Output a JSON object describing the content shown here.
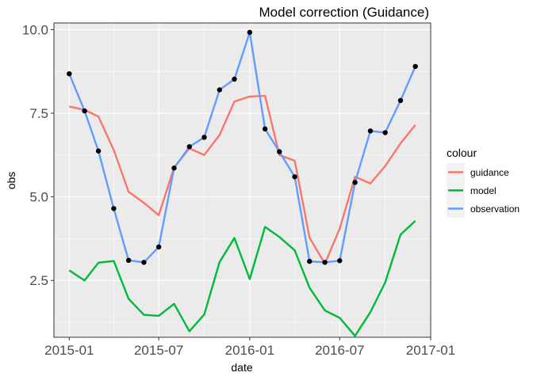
{
  "chart_data": {
    "type": "line",
    "title": "Model correction (Guidance)",
    "xlabel": "date",
    "ylabel": "obs",
    "grid": true,
    "legend_position": "right",
    "legend_title": "colour",
    "xlim": [
      "2014-12-01",
      "2017-01-01"
    ],
    "ylim": [
      0.8,
      10.2
    ],
    "x_ticks": [
      {
        "value": "2015-01-01",
        "label": "2015-01"
      },
      {
        "value": "2015-07-01",
        "label": "2015-07"
      },
      {
        "value": "2016-01-01",
        "label": "2016-01"
      },
      {
        "value": "2016-07-01",
        "label": "2016-07"
      },
      {
        "value": "2017-01-01",
        "label": "2017-01"
      }
    ],
    "y_ticks": [
      {
        "value": 2.5,
        "label": "2.5"
      },
      {
        "value": 5.0,
        "label": "5.0"
      },
      {
        "value": 7.5,
        "label": "7.5"
      },
      {
        "value": 10.0,
        "label": "10.0"
      }
    ],
    "x": [
      "2015-01-01",
      "2015-02-01",
      "2015-03-01",
      "2015-04-01",
      "2015-05-01",
      "2015-06-01",
      "2015-07-01",
      "2015-08-01",
      "2015-09-01",
      "2015-10-01",
      "2015-11-01",
      "2015-12-01",
      "2016-01-01",
      "2016-02-01",
      "2016-03-01",
      "2016-04-01",
      "2016-05-01",
      "2016-06-01",
      "2016-07-01",
      "2016-08-01",
      "2016-09-01",
      "2016-10-01",
      "2016-11-01",
      "2016-12-01"
    ],
    "series": [
      {
        "name": "guidance",
        "color": "#F8766D",
        "values": [
          7.7,
          7.6,
          7.4,
          6.4,
          5.15,
          4.82,
          4.45,
          5.88,
          6.45,
          6.25,
          6.85,
          7.85,
          8.0,
          8.02,
          6.25,
          6.08,
          3.78,
          3.0,
          4.05,
          5.6,
          5.4,
          5.92,
          6.6,
          7.15
        ]
      },
      {
        "name": "model",
        "color": "#00BA38",
        "values": [
          2.8,
          2.5,
          3.03,
          3.08,
          1.95,
          1.47,
          1.44,
          1.8,
          0.98,
          1.48,
          3.05,
          3.77,
          2.54,
          4.1,
          3.8,
          3.4,
          2.28,
          1.6,
          1.38,
          0.84,
          1.55,
          2.44,
          3.87,
          4.28
        ]
      },
      {
        "name": "observation",
        "color": "#619CFF",
        "values": [
          8.68,
          7.57,
          6.37,
          4.65,
          3.1,
          3.04,
          3.5,
          5.86,
          6.5,
          6.78,
          8.2,
          8.52,
          9.92,
          7.03,
          6.35,
          5.6,
          3.07,
          3.04,
          3.09,
          5.43,
          6.97,
          6.92,
          7.88,
          8.9
        ]
      }
    ],
    "points_series": "observation"
  }
}
